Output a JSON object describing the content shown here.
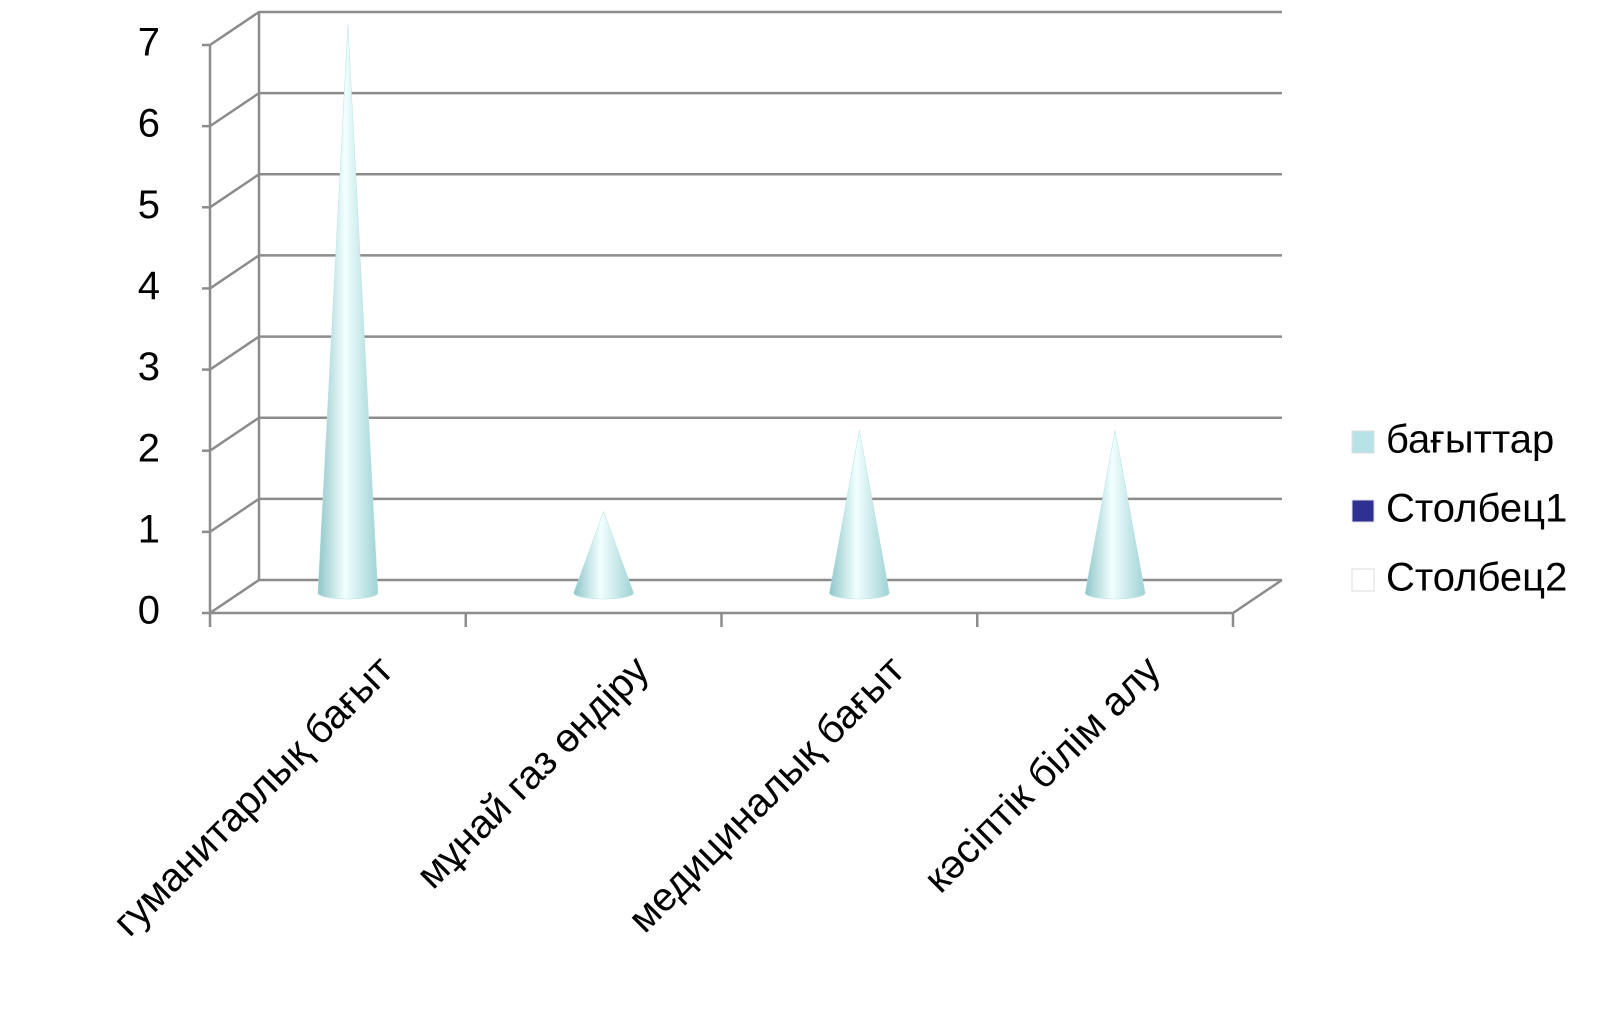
{
  "chart_data": {
    "type": "cone",
    "categories": [
      "гуманитарлық бағыт",
      "мұнай газ өндіру",
      "медициналық бағыт",
      "кәсіптік білім алу"
    ],
    "series": [
      {
        "name": "бағыттар",
        "color": "#b7e3e6",
        "values": [
          7,
          1,
          2,
          2
        ]
      },
      {
        "name": "Столбец1",
        "color": "#2e3192",
        "values": [
          null,
          null,
          null,
          null
        ]
      },
      {
        "name": "Столбец2",
        "color": "#ffffff",
        "values": [
          null,
          null,
          null,
          null
        ]
      }
    ],
    "ylim": [
      0,
      7
    ],
    "yticks": [
      0,
      1,
      2,
      3,
      4,
      5,
      6,
      7
    ],
    "grid": true,
    "legend": "right"
  }
}
